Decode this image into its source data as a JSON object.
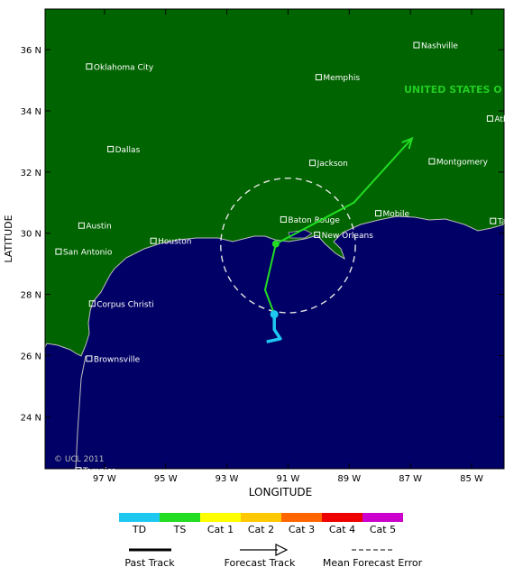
{
  "map": {
    "country_label": "UNITED STATES O",
    "copyright": "© UCL 2011",
    "axis_x_title": "LONGITUDE",
    "axis_y_title": "LATITUDE",
    "lat_ticks": [
      {
        "value": 36,
        "label": "36 N"
      },
      {
        "value": 34,
        "label": "34 N"
      },
      {
        "value": 32,
        "label": "32 N"
      },
      {
        "value": 30,
        "label": "30 N"
      },
      {
        "value": 28,
        "label": "28 N"
      },
      {
        "value": 26,
        "label": "26 N"
      },
      {
        "value": 24,
        "label": "24 N"
      }
    ],
    "lon_ticks": [
      {
        "value": -97,
        "label": "97 W"
      },
      {
        "value": -95,
        "label": "95 W"
      },
      {
        "value": -93,
        "label": "93 W"
      },
      {
        "value": -91,
        "label": "91 W"
      },
      {
        "value": -89,
        "label": "89 W"
      },
      {
        "value": -87,
        "label": "87 W"
      },
      {
        "value": -85,
        "label": "85 W"
      }
    ],
    "cities": [
      {
        "name": "Nashville",
        "lon": -86.8,
        "lat": 36.15
      },
      {
        "name": "Oklahoma City",
        "lon": -97.5,
        "lat": 35.45
      },
      {
        "name": "Memphis",
        "lon": -90.0,
        "lat": 35.1
      },
      {
        "name": "Atlanta",
        "lon": -84.4,
        "lat": 33.75
      },
      {
        "name": "Dallas",
        "lon": -96.8,
        "lat": 32.75
      },
      {
        "name": "Jackson",
        "lon": -90.2,
        "lat": 32.3
      },
      {
        "name": "Montgomery",
        "lon": -86.3,
        "lat": 32.35
      },
      {
        "name": "Mobile",
        "lon": -88.05,
        "lat": 30.65
      },
      {
        "name": "Baton Rouge",
        "lon": -91.15,
        "lat": 30.45
      },
      {
        "name": "Austin",
        "lon": -97.75,
        "lat": 30.25
      },
      {
        "name": "Tallahassee",
        "lon": -84.3,
        "lat": 30.4
      },
      {
        "name": "New Orleans",
        "lon": -90.05,
        "lat": 29.95
      },
      {
        "name": "Houston",
        "lon": -95.4,
        "lat": 29.75
      },
      {
        "name": "San Antonio",
        "lon": -98.5,
        "lat": 29.4
      },
      {
        "name": "Corpus Christi",
        "lon": -97.4,
        "lat": 27.7
      },
      {
        "name": "Brownsville",
        "lon": -97.5,
        "lat": 25.9
      },
      {
        "name": "Tampico",
        "lon": -97.85,
        "lat": 22.25
      }
    ],
    "past_track": [
      {
        "lon": -91.7,
        "lat": 26.45
      },
      {
        "lon": -91.25,
        "lat": 26.55
      },
      {
        "lon": -91.45,
        "lat": 26.85
      },
      {
        "lon": -91.45,
        "lat": 27.25
      }
    ],
    "forecast_track": [
      {
        "lon": -91.45,
        "lat": 27.35
      },
      {
        "lon": -91.75,
        "lat": 28.15
      },
      {
        "lon": -91.4,
        "lat": 29.65
      },
      {
        "lon": -88.85,
        "lat": 31.0
      },
      {
        "lon": -86.95,
        "lat": 33.1
      }
    ],
    "current_position": {
      "lon": -91.45,
      "lat": 27.35
    },
    "forecast_point": {
      "lon": -91.4,
      "lat": 29.65
    },
    "error_circle": {
      "lon": -91.0,
      "lat": 29.6,
      "radius_deg": 2.2
    },
    "colors": {
      "land": "#006400",
      "ocean": "#000066",
      "coast": "#bdbdbd",
      "td": "#1ec8f0",
      "ts": "#22dd22",
      "country_label": "#22cc22"
    }
  },
  "legend": {
    "categories": [
      {
        "label": "TD",
        "color": "#1ec8f0"
      },
      {
        "label": "TS",
        "color": "#22dd22"
      },
      {
        "label": "Cat 1",
        "color": "#ffff00"
      },
      {
        "label": "Cat 2",
        "color": "#ffc800"
      },
      {
        "label": "Cat 3",
        "color": "#ff6600"
      },
      {
        "label": "Cat 4",
        "color": "#ee0000"
      },
      {
        "label": "Cat 5",
        "color": "#cc00cc"
      }
    ],
    "past_track_label": "Past Track",
    "forecast_track_label": "Forecast Track",
    "error_label": "Mean Forecast Error"
  }
}
